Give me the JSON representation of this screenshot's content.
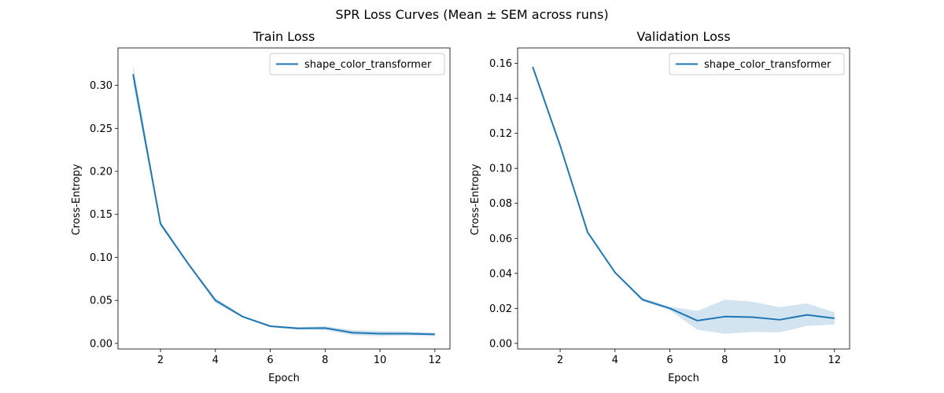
{
  "suptitle": "SPR Loss Curves (Mean ± SEM across runs)",
  "colors": {
    "line": "#1f77b4",
    "band": "#1f77b4"
  },
  "chart_data": [
    {
      "type": "line",
      "title": "Train Loss",
      "xlabel": "Epoch",
      "ylabel": "Cross-Entropy",
      "xlim": [
        0.45,
        12.55
      ],
      "ylim": [
        -0.0065,
        0.3435
      ],
      "xticks": [
        2,
        4,
        6,
        8,
        10,
        12
      ],
      "yticks": [
        0.0,
        0.05,
        0.1,
        0.15,
        0.2,
        0.25,
        0.3
      ],
      "ytick_labels": [
        "0.00",
        "0.05",
        "0.10",
        "0.15",
        "0.20",
        "0.25",
        "0.30"
      ],
      "grid": false,
      "legend": "top-right",
      "x": [
        1,
        2,
        3,
        4,
        5,
        6,
        7,
        8,
        9,
        10,
        11,
        12
      ],
      "series": [
        {
          "name": "shape_color_transformer",
          "mean": [
            0.313,
            0.139,
            0.093,
            0.05,
            0.031,
            0.02,
            0.0175,
            0.0178,
            0.0125,
            0.0113,
            0.0113,
            0.0105
          ],
          "lower": [
            0.302,
            0.136,
            0.092,
            0.047,
            0.03,
            0.019,
            0.016,
            0.0155,
            0.0095,
            0.0085,
            0.009,
            0.0085
          ],
          "upper": [
            0.324,
            0.142,
            0.094,
            0.053,
            0.032,
            0.021,
            0.019,
            0.02,
            0.0155,
            0.0145,
            0.014,
            0.0125
          ]
        }
      ]
    },
    {
      "type": "line",
      "title": "Validation Loss",
      "xlabel": "Epoch",
      "ylabel": "Cross-Entropy",
      "xlim": [
        0.45,
        12.55
      ],
      "ylim": [
        -0.0032,
        0.1688
      ],
      "xticks": [
        2,
        4,
        6,
        8,
        10,
        12
      ],
      "yticks": [
        0.0,
        0.02,
        0.04,
        0.06,
        0.08,
        0.1,
        0.12,
        0.14,
        0.16
      ],
      "ytick_labels": [
        "0.00",
        "0.02",
        "0.04",
        "0.06",
        "0.08",
        "0.10",
        "0.12",
        "0.14",
        "0.16"
      ],
      "grid": false,
      "legend": "top-right",
      "x": [
        1,
        2,
        3,
        4,
        5,
        6,
        7,
        8,
        9,
        10,
        11,
        12
      ],
      "series": [
        {
          "name": "shape_color_transformer",
          "mean": [
            0.158,
            0.113,
            0.0635,
            0.0405,
            0.025,
            0.02,
            0.013,
            0.0153,
            0.015,
            0.0135,
            0.0163,
            0.0143
          ],
          "lower": [
            0.157,
            0.112,
            0.063,
            0.04,
            0.024,
            0.019,
            0.0078,
            0.0055,
            0.0065,
            0.0063,
            0.01,
            0.0108
          ],
          "upper": [
            0.159,
            0.114,
            0.064,
            0.041,
            0.026,
            0.021,
            0.0185,
            0.025,
            0.0238,
            0.0207,
            0.0228,
            0.0178
          ]
        }
      ]
    }
  ]
}
